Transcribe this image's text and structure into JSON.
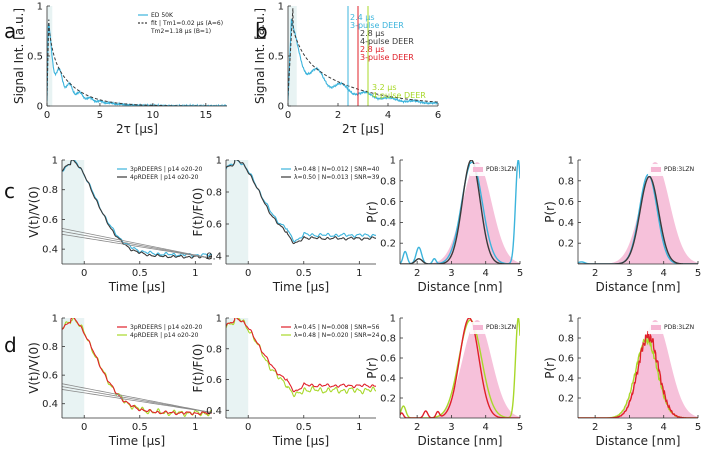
{
  "figure_title": "",
  "colors": {
    "cyan": "#3cb4dc",
    "dark": "#3a3a3a",
    "red": "#e0202a",
    "lime": "#a8d82a",
    "pink": "#f5b6d3",
    "band": "#e8f3f3"
  },
  "chart_data": [
    {
      "id": "a",
      "panel_label": "a",
      "type": "line",
      "title": "",
      "xlabel": "2τ [μs]",
      "ylabel": "Signal Int. [a.u.]",
      "xlim": [
        0,
        17
      ],
      "ylim": [
        0,
        1
      ],
      "xticks": [
        0,
        5,
        10,
        15
      ],
      "yticks": [
        0,
        0.5,
        1
      ],
      "legend": [
        "ED 50K",
        "fit  |  Tm1=0.02 μs (A=6)",
        "Tm2=1.18 μs (B=1)"
      ],
      "series": [
        {
          "name": "ED 50K",
          "color": "cyan",
          "style": "solid",
          "func": "echo_data"
        },
        {
          "name": "fit",
          "color": "dark",
          "style": "dashed",
          "func": "echo_fit"
        }
      ]
    },
    {
      "id": "b",
      "panel_label": "b",
      "type": "line",
      "title": "",
      "xlabel": "2τ [μs]",
      "ylabel": "Signal Int. [a.u.]",
      "xlim": [
        0,
        6
      ],
      "ylim": [
        0,
        1
      ],
      "xticks": [
        0,
        2,
        4,
        6
      ],
      "yticks": [
        0,
        0.5,
        1
      ],
      "series": [
        {
          "name": "ED 50K",
          "color": "cyan",
          "style": "solid",
          "func": "echo_data"
        },
        {
          "name": "fit",
          "color": "dark",
          "style": "dashed",
          "func": "echo_fit"
        }
      ],
      "markers": [
        {
          "x": 2.4,
          "color": "cyan",
          "line1": "2.4 μs",
          "line2": "3-pulse DEER"
        },
        {
          "x": 2.8,
          "color": "dark",
          "line1": "2.8 μs",
          "line2": "4-pulse DEER"
        },
        {
          "x": 2.8,
          "color": "red",
          "line1": "2.8 μs",
          "line2": "3-pulse DEER"
        },
        {
          "x": 3.2,
          "color": "lime",
          "line1": "3.2 μs",
          "line2": "4-pulse DEER"
        }
      ]
    },
    {
      "id": "c1",
      "panel_label": "c",
      "type": "line",
      "xlabel": "Time [μs]",
      "ylabel": "V(t)/V(0)",
      "xlim": [
        -0.2,
        1.15
      ],
      "ylim": [
        0.3,
        1.0
      ],
      "xticks": [
        0,
        0.5,
        1
      ],
      "yticks": [
        0.4,
        0.6,
        0.8,
        1
      ],
      "legend": [
        "3pRDEERS  |  p14 o20-20",
        "4pRDEER  |  p14 o20-20"
      ],
      "series": [
        {
          "name": "3pRDEERS",
          "color": "cyan",
          "func": "v_trace",
          "final": 0.37,
          "noise": 0.012
        },
        {
          "name": "4pRDEER",
          "color": "dark",
          "func": "v_trace",
          "final": 0.355,
          "noise": 0.01
        },
        {
          "name": "background",
          "color": "dark",
          "func": "bg"
        }
      ]
    },
    {
      "id": "c2",
      "type": "line",
      "xlabel": "Time [μs]",
      "ylabel": "F(t)/F(0)",
      "xlim": [
        -0.2,
        1.15
      ],
      "ylim": [
        0.35,
        1.0
      ],
      "xticks": [
        0,
        0.5,
        1
      ],
      "yticks": [
        0.4,
        0.6,
        0.8,
        1
      ],
      "legend": [
        "λ=0.48  |  N=0.012  |  SNR=40",
        "λ=0.50  |  N=0.013  |  SNR=39"
      ],
      "series": [
        {
          "name": "λ=0.48",
          "color": "cyan",
          "func": "f_trace",
          "final": 0.53,
          "noise": 0.012
        },
        {
          "name": "λ=0.50",
          "color": "dark",
          "func": "f_trace",
          "final": 0.51,
          "noise": 0.01
        }
      ]
    },
    {
      "id": "c3",
      "type": "line",
      "xlabel": "Distance [nm]",
      "ylabel": "P(r)",
      "xlim": [
        1.5,
        5.0
      ],
      "ylim": [
        0,
        1
      ],
      "xticks": [
        2,
        3,
        4,
        5
      ],
      "yticks": [
        0.2,
        0.4,
        0.6,
        0.8,
        1
      ],
      "legend": [
        "PDB:3LZN"
      ],
      "series": [
        {
          "name": "PDB:3LZN",
          "color": "pink",
          "func": "pdb_area"
        },
        {
          "name": "3pRDEERS P(r)",
          "color": "cyan",
          "func": "pr_c3_cyan"
        },
        {
          "name": "4pRDEER P(r)",
          "color": "dark",
          "func": "pr_c3_dark"
        }
      ]
    },
    {
      "id": "c4",
      "type": "line",
      "xlabel": "Distance [nm]",
      "ylabel": "P(r)",
      "xlim": [
        1.5,
        5.0
      ],
      "ylim": [
        0,
        1
      ],
      "xticks": [
        2,
        3,
        4,
        5
      ],
      "yticks": [
        0.2,
        0.4,
        0.6,
        0.8,
        1
      ],
      "legend": [
        "PDB:3LZN"
      ],
      "series": [
        {
          "name": "PDB:3LZN",
          "color": "pink",
          "func": "pdb_area"
        },
        {
          "name": "3pRDEERS P(r)",
          "color": "cyan",
          "func": "pr_c4_cyan"
        },
        {
          "name": "4pRDEER P(r)",
          "color": "dark",
          "func": "pr_c4_dark"
        }
      ]
    },
    {
      "id": "d1",
      "panel_label": "d",
      "type": "line",
      "xlabel": "Time [μs]",
      "ylabel": "V(t)/V(0)",
      "xlim": [
        -0.2,
        1.15
      ],
      "ylim": [
        0.3,
        1.0
      ],
      "xticks": [
        0,
        0.5,
        1
      ],
      "yticks": [
        0.4,
        0.6,
        0.8,
        1
      ],
      "legend": [
        "3pRDEERS  |  p14 o20-20",
        "4pRDEER  |  p14 o20-20"
      ],
      "series": [
        {
          "name": "4pRDEER",
          "color": "lime",
          "func": "v_trace",
          "final": 0.34,
          "noise": 0.022
        },
        {
          "name": "3pRDEERS",
          "color": "red",
          "func": "v_trace",
          "final": 0.34,
          "noise": 0.012
        },
        {
          "name": "background",
          "color": "dark",
          "func": "bg"
        }
      ]
    },
    {
      "id": "d2",
      "type": "line",
      "xlabel": "Time [μs]",
      "ylabel": "F(t)/F(0)",
      "xlim": [
        -0.2,
        1.15
      ],
      "ylim": [
        0.35,
        1.0
      ],
      "xticks": [
        0,
        0.5,
        1
      ],
      "yticks": [
        0.4,
        0.6,
        0.8,
        1
      ],
      "legend": [
        "λ=0.45  |  N=0.008  |  SNR=56",
        "λ=0.48  |  N=0.020  |  SNR=24"
      ],
      "series": [
        {
          "name": "λ=0.48",
          "color": "lime",
          "func": "f_trace",
          "final": 0.53,
          "noise": 0.022
        },
        {
          "name": "λ=0.45",
          "color": "red",
          "func": "f_trace",
          "final": 0.56,
          "noise": 0.012
        }
      ]
    },
    {
      "id": "d3",
      "type": "line",
      "xlabel": "Distance [nm]",
      "ylabel": "P(r)",
      "xlim": [
        1.5,
        5.0
      ],
      "ylim": [
        0,
        1
      ],
      "xticks": [
        2,
        3,
        4,
        5
      ],
      "yticks": [
        0.2,
        0.4,
        0.6,
        0.8,
        1
      ],
      "legend": [
        "PDB:3LZN"
      ],
      "series": [
        {
          "name": "PDB:3LZN",
          "color": "pink",
          "func": "pdb_area"
        },
        {
          "name": "4pRDEER P(r)",
          "color": "lime",
          "func": "pr_d3_lime"
        },
        {
          "name": "3pRDEERS P(r)",
          "color": "red",
          "func": "pr_d3_red"
        }
      ]
    },
    {
      "id": "d4",
      "type": "line",
      "xlabel": "Distance [nm]",
      "ylabel": "P(r)",
      "xlim": [
        1.5,
        5.0
      ],
      "ylim": [
        0,
        1
      ],
      "xticks": [
        2,
        3,
        4,
        5
      ],
      "yticks": [
        0.2,
        0.4,
        0.6,
        0.8,
        1
      ],
      "legend": [
        "PDB:3LZN"
      ],
      "series": [
        {
          "name": "PDB:3LZN",
          "color": "pink",
          "func": "pdb_area"
        },
        {
          "name": "4pRDEER P(r)",
          "color": "lime",
          "func": "pr_d4_lime"
        },
        {
          "name": "3pRDEERS P(r)",
          "color": "red",
          "func": "pr_d4_red"
        }
      ]
    }
  ]
}
